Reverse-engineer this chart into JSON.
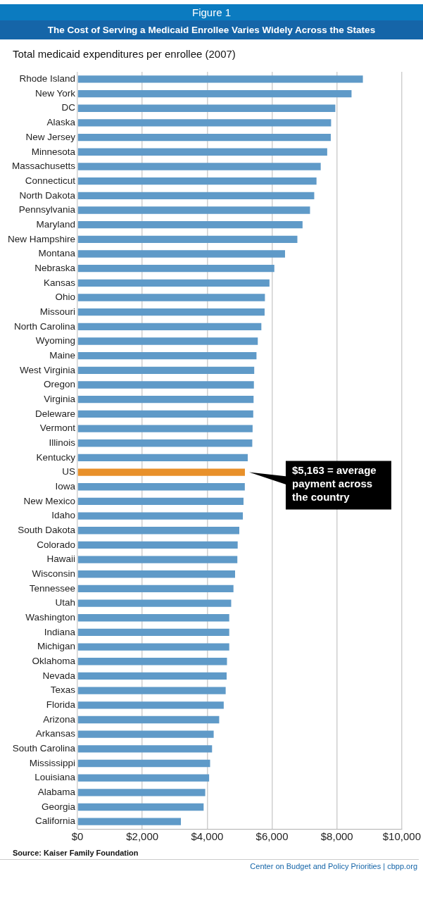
{
  "chart_data": {
    "type": "bar",
    "orientation": "horizontal",
    "title": "The Cost of Serving a Medicaid Enrollee Varies Widely Across the States",
    "subtitle": "Total medicaid expenditures per enrollee (2007)",
    "categories": [
      "Rhode Island",
      "New York",
      "DC",
      "Alaska",
      "New Jersey",
      "Minnesota",
      "Massachusetts",
      "Connecticut",
      "North Dakota",
      "Pennsylvania",
      "Maryland",
      "New Hampshire",
      "Montana",
      "Nebraska",
      "Kansas",
      "Ohio",
      "Missouri",
      "North Carolina",
      "Wyoming",
      "Maine",
      "West Virginia",
      "Oregon",
      "Virginia",
      "Deleware",
      "Vermont",
      "Illinois",
      "Kentucky",
      "US",
      "Iowa",
      "New Mexico",
      "Idaho",
      "South Dakota",
      "Colorado",
      "Hawaii",
      "Wisconsin",
      "Tennessee",
      "Utah",
      "Washington",
      "Indiana",
      "Michigan",
      "Oklahoma",
      "Nevada",
      "Texas",
      "Florida",
      "Arizona",
      "Arkansas",
      "South Carolina",
      "Mississippi",
      "Louisiana",
      "Alabama",
      "Georgia",
      "California"
    ],
    "values": [
      8800,
      8450,
      7950,
      7820,
      7810,
      7700,
      7500,
      7370,
      7300,
      7170,
      6940,
      6780,
      6400,
      6070,
      5920,
      5780,
      5770,
      5670,
      5560,
      5520,
      5450,
      5440,
      5430,
      5420,
      5400,
      5390,
      5250,
      5163,
      5160,
      5120,
      5100,
      4990,
      4940,
      4930,
      4860,
      4810,
      4740,
      4680,
      4680,
      4680,
      4610,
      4600,
      4570,
      4510,
      4370,
      4200,
      4150,
      4090,
      4060,
      3940,
      3890,
      3190
    ],
    "colors": [
      "#5f9ac8",
      "#5f9ac8",
      "#5f9ac8",
      "#5f9ac8",
      "#5f9ac8",
      "#5f9ac8",
      "#5f9ac8",
      "#5f9ac8",
      "#5f9ac8",
      "#5f9ac8",
      "#5f9ac8",
      "#5f9ac8",
      "#5f9ac8",
      "#5f9ac8",
      "#5f9ac8",
      "#5f9ac8",
      "#5f9ac8",
      "#5f9ac8",
      "#5f9ac8",
      "#5f9ac8",
      "#5f9ac8",
      "#5f9ac8",
      "#5f9ac8",
      "#5f9ac8",
      "#5f9ac8",
      "#5f9ac8",
      "#5f9ac8",
      "#e8902a",
      "#5f9ac8",
      "#5f9ac8",
      "#5f9ac8",
      "#5f9ac8",
      "#5f9ac8",
      "#5f9ac8",
      "#5f9ac8",
      "#5f9ac8",
      "#5f9ac8",
      "#5f9ac8",
      "#5f9ac8",
      "#5f9ac8",
      "#5f9ac8",
      "#5f9ac8",
      "#5f9ac8",
      "#5f9ac8",
      "#5f9ac8",
      "#5f9ac8",
      "#5f9ac8",
      "#5f9ac8",
      "#5f9ac8",
      "#5f9ac8",
      "#5f9ac8",
      "#5f9ac8"
    ],
    "xlim": [
      0,
      10000
    ],
    "xticks": [
      {
        "value": 0,
        "label": "$0"
      },
      {
        "value": 2000,
        "label": "$2,000"
      },
      {
        "value": 4000,
        "label": "$4,000"
      },
      {
        "value": 6000,
        "label": "$6,000"
      },
      {
        "value": 8000,
        "label": "$8,000"
      },
      {
        "value": 10000,
        "label": "$10,000"
      }
    ],
    "grid": "x",
    "legend": false,
    "annotations": [
      "Figure 1",
      {
        "text": "$5,163 = average payment across the country",
        "x": 5163,
        "y": "US"
      },
      "Source:  Kaiser Family Foundation",
      "Center on Budget and Policy Priorities | cbpp.org"
    ]
  }
}
